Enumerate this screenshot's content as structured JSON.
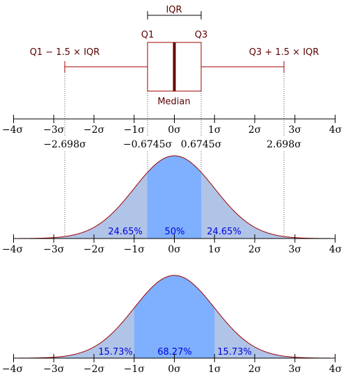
{
  "tick_labels": [
    "−4σ",
    "−3σ",
    "−2σ",
    "−1σ",
    "0σ",
    "1σ",
    "2σ",
    "3σ",
    "4σ"
  ],
  "boxplot": {
    "iqr_label": "IQR",
    "q1_label": "Q1",
    "q3_label": "Q3",
    "median_label": "Median",
    "lower_whisker_label": "Q1 − 1.5 × IQR",
    "upper_whisker_label": "Q3 + 1.5 × IQR"
  },
  "boundary_labels": {
    "lower_whisker": "−2.698σ",
    "q1": "−0.6745σ",
    "q3": "0.6745σ",
    "upper_whisker": "2.698σ"
  },
  "iqr_pdf": {
    "left_pct": "24.65%",
    "center_pct": "50%",
    "right_pct": "24.65%"
  },
  "sigma_pdf": {
    "left_pct": "15.73%",
    "center_pct": "68.27%",
    "right_pct": "15.73%"
  },
  "colors": {
    "dark_red": "#5a0000",
    "curve": "#a00000",
    "light_fill": "#b0c4e8",
    "center_fill": "#7fb0ff",
    "percent_text": "#0000dd"
  },
  "chart_data": {
    "type": "area",
    "distribution": "standard normal",
    "x_range": [
      -4,
      4
    ],
    "boxplot": {
      "q1": -0.6745,
      "median": 0,
      "q3": 0.6745,
      "lower_whisker": -2.698,
      "upper_whisker": 2.698
    },
    "iqr_split": {
      "boundaries": [
        -0.6745,
        0.6745
      ],
      "shares": [
        24.65,
        50,
        24.65
      ]
    },
    "sigma_split": {
      "boundaries": [
        -1,
        1
      ],
      "shares": [
        15.73,
        68.27,
        15.73
      ]
    }
  }
}
